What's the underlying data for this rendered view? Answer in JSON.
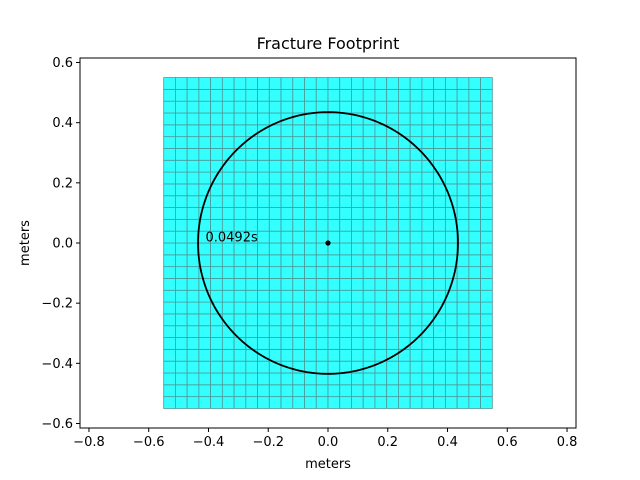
{
  "chart_data": {
    "type": "scatter",
    "title": "Fracture Footprint",
    "xlabel": "meters",
    "ylabel": "meters",
    "xlim": [
      -0.83,
      0.83
    ],
    "ylim": [
      -0.615,
      0.615
    ],
    "xticks": [
      -0.8,
      -0.6,
      -0.4,
      -0.2,
      0.0,
      0.2,
      0.4,
      0.6,
      0.8
    ],
    "yticks": [
      -0.6,
      -0.4,
      -0.2,
      0.0,
      0.2,
      0.4,
      0.6
    ],
    "xtick_labels": [
      "−0.8",
      "−0.6",
      "−0.4",
      "−0.2",
      "0.0",
      "0.2",
      "0.4",
      "0.6",
      "0.8"
    ],
    "ytick_labels": [
      "−0.6",
      "−0.4",
      "−0.2",
      "0.0",
      "0.2",
      "0.4",
      "0.6"
    ],
    "grid": false,
    "mesh": {
      "xmin": -0.55,
      "xmax": 0.55,
      "ymin": -0.55,
      "ymax": 0.55,
      "cells_per_side": 28,
      "fill_color": "#33ffff",
      "edge_color": "#4c9999"
    },
    "front": {
      "center": [
        0.0,
        0.0
      ],
      "radius": 0.435,
      "color": "#000000"
    },
    "injection_point": [
      0.0,
      0.0
    ],
    "annotation": {
      "text": "0.0492s",
      "x": -0.41,
      "y": 0.0
    }
  }
}
